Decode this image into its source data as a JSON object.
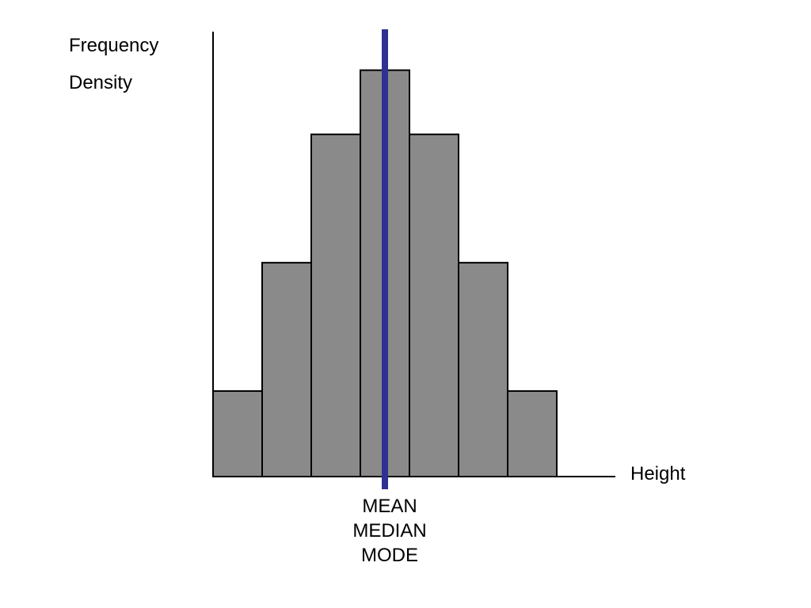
{
  "chart_data": {
    "type": "bar",
    "title": "",
    "ylabel_lines": [
      "Frequency",
      "Density"
    ],
    "xlabel": "Height",
    "values": [
      1,
      2.5,
      4,
      4.75,
      4,
      2.5,
      1
    ],
    "ylim": [
      0,
      5.2
    ],
    "bar_color": "#8a8a8a",
    "bar_edge_color": "#000000",
    "marker": {
      "position_bar_index": 3.5,
      "color": "#2e3192",
      "labels": [
        "MEAN",
        "MEDIAN",
        "MODE"
      ]
    },
    "grid": false
  }
}
